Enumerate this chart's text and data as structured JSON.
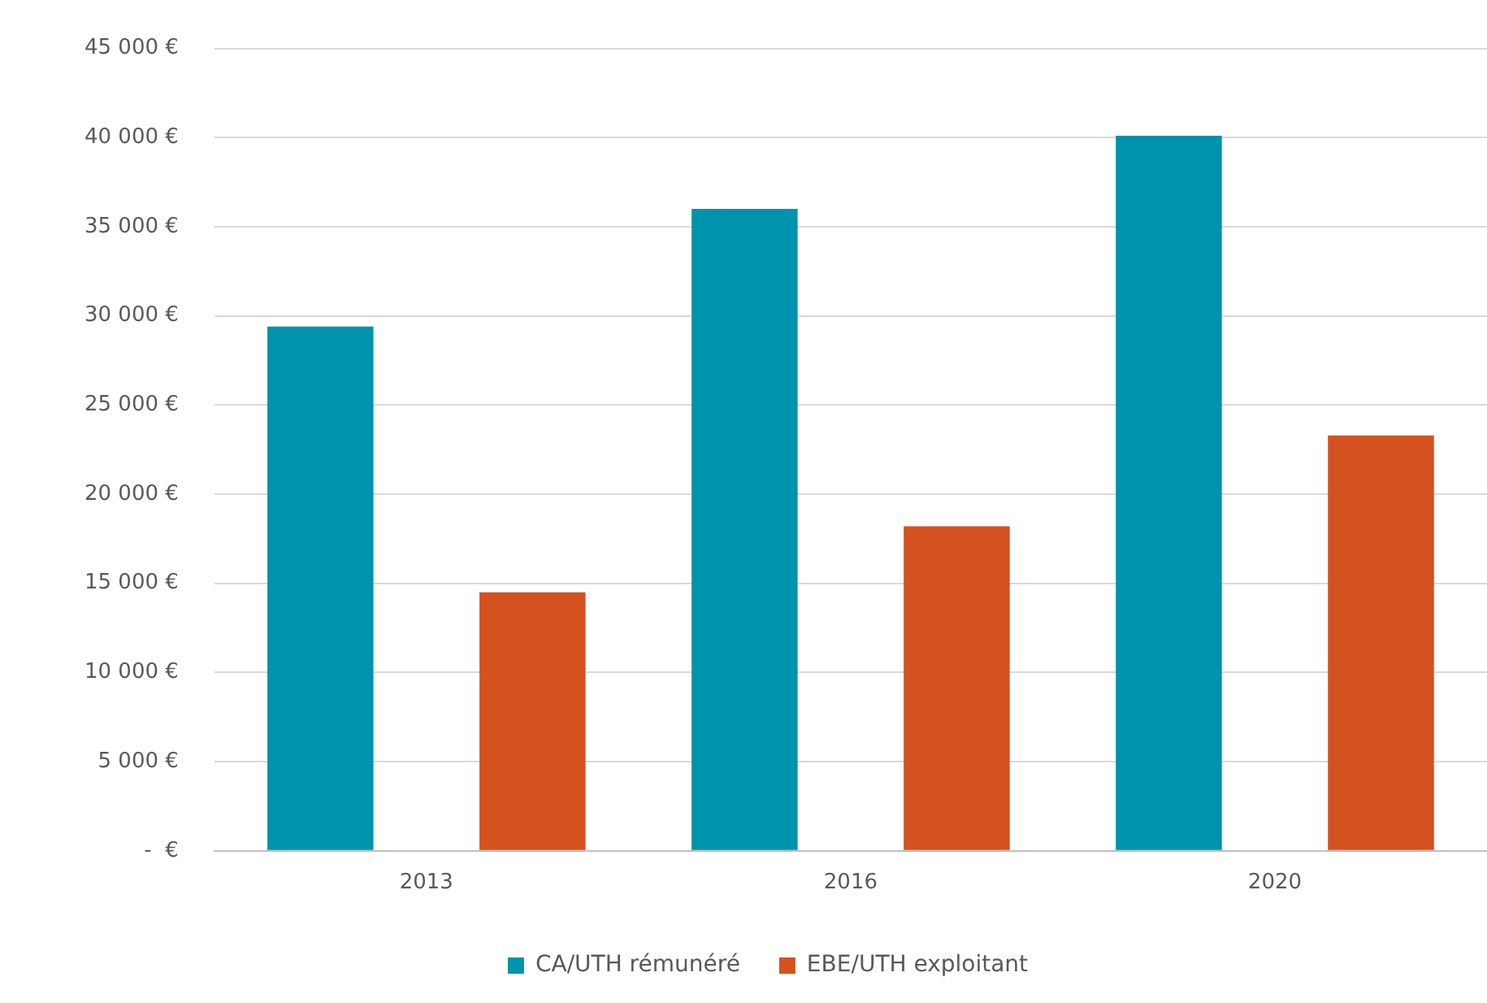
{
  "chart_data": {
    "type": "bar",
    "categories": [
      "2013",
      "2016",
      "2020"
    ],
    "series": [
      {
        "name": "CA/UTH rémunéré",
        "color": "#0093ad",
        "values": [
          29400,
          36000,
          40100
        ]
      },
      {
        "name": "EBE/UTH exploitant",
        "color": "#d35220",
        "values": [
          14500,
          18200,
          23300
        ]
      }
    ],
    "ylim": [
      0,
      45000
    ],
    "yticks": [
      {
        "value": 0,
        "label": "-  €"
      },
      {
        "value": 5000,
        "label": "5 000 €"
      },
      {
        "value": 10000,
        "label": "10 000 €"
      },
      {
        "value": 15000,
        "label": "15 000 €"
      },
      {
        "value": 20000,
        "label": "20 000 €"
      },
      {
        "value": 25000,
        "label": "25 000 €"
      },
      {
        "value": 30000,
        "label": "30 000 €"
      },
      {
        "value": 35000,
        "label": "35 000 €"
      },
      {
        "value": 40000,
        "label": "40 000 €"
      },
      {
        "value": 45000,
        "label": "45 000 €"
      }
    ],
    "grid": "y",
    "legend": "bottom"
  }
}
